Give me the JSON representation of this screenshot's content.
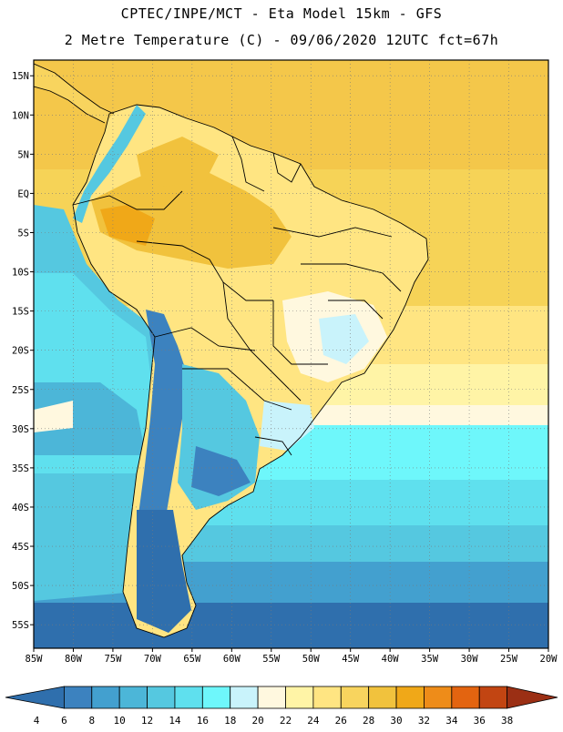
{
  "header": {
    "line1": "CPTEC/INPE/MCT -  Eta Model 15km - GFS",
    "line2": "2 Metre Temperature (C) - 09/06/2020 12UTC fct=67h"
  },
  "map": {
    "lon_range": [
      -85,
      -20
    ],
    "lat_range": [
      -58,
      17
    ],
    "lon_ticks": [
      "85W",
      "80W",
      "75W",
      "70W",
      "65W",
      "60W",
      "55W",
      "50W",
      "45W",
      "40W",
      "35W",
      "30W",
      "25W",
      "20W"
    ],
    "lat_ticks": [
      "15N",
      "10N",
      "5N",
      "EQ",
      "5S",
      "10S",
      "15S",
      "20S",
      "25S",
      "30S",
      "35S",
      "40S",
      "45S",
      "50S",
      "55S"
    ],
    "grid_lines": true
  },
  "colorbar": {
    "labels": [
      "4",
      "6",
      "8",
      "10",
      "12",
      "14",
      "16",
      "18",
      "20",
      "22",
      "24",
      "26",
      "28",
      "30",
      "32",
      "34",
      "36",
      "38"
    ],
    "colors": [
      "#2f6fad",
      "#3c82bf",
      "#43a0cf",
      "#4cb6d8",
      "#55c8e0",
      "#5fe0ee",
      "#6ef7fb",
      "#c9f3fb",
      "#fff8df",
      "#fff4a6",
      "#ffe582",
      "#f8d45e",
      "#f1c23d",
      "#f0a818",
      "#ee8c19",
      "#e36410",
      "#c24512",
      "#9b2f14"
    ]
  }
}
